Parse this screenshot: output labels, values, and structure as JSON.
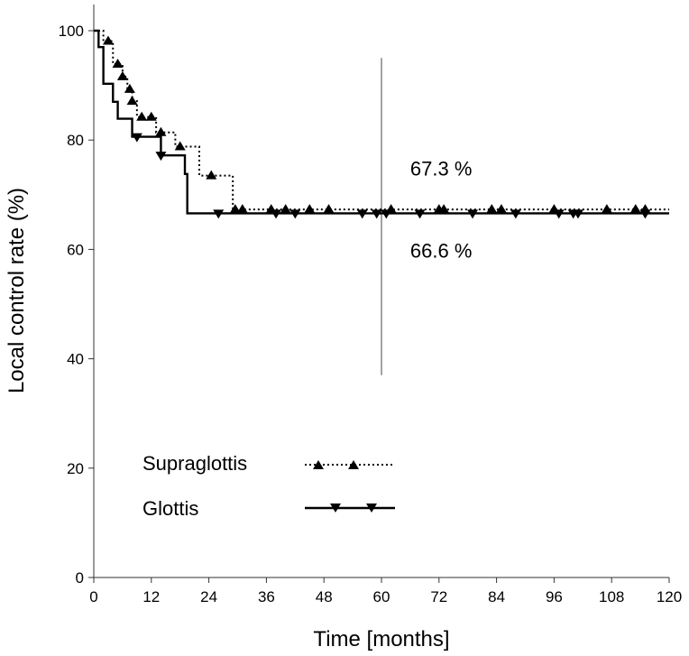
{
  "chart_data": {
    "type": "line",
    "subtype": "kaplan-meier",
    "title": "",
    "xlabel": "Time [months]",
    "ylabel": "Local control rate (%)",
    "xlim": [
      0,
      120
    ],
    "ylim": [
      0,
      100
    ],
    "xticks": [
      0,
      12,
      24,
      36,
      48,
      60,
      72,
      84,
      96,
      108,
      120
    ],
    "yticks": [
      0,
      20,
      40,
      60,
      80,
      100
    ],
    "grid": false,
    "legend_position": "bottom-left",
    "reference_line": {
      "x": 60,
      "y_from": 37,
      "y_to": 95
    },
    "annotations": [
      {
        "text": "67.3 %",
        "x": 66,
        "y": 73.5
      },
      {
        "text": "66.6 %",
        "x": 66,
        "y": 58.5
      }
    ],
    "series": [
      {
        "name": "Supraglottis",
        "style": "dotted",
        "marker": "triangle-up",
        "steps": [
          [
            0,
            100
          ],
          [
            2,
            98.1
          ],
          [
            4,
            93.9
          ],
          [
            6,
            91.6
          ],
          [
            7,
            89.3
          ],
          [
            8,
            87.1
          ],
          [
            9,
            84.2
          ],
          [
            13,
            81.4
          ],
          [
            17,
            78.8
          ],
          [
            22,
            73.5
          ],
          [
            25,
            73.5
          ],
          [
            29,
            67.3
          ],
          [
            120,
            67.3
          ]
        ],
        "censor": [
          3,
          5,
          6,
          7.5,
          8,
          10,
          12,
          14,
          18,
          24.5,
          29.5,
          31,
          37,
          40,
          45,
          49,
          62,
          72,
          73,
          83,
          85,
          96,
          107,
          113,
          115
        ]
      },
      {
        "name": "Glottis",
        "style": "solid",
        "marker": "triangle-down",
        "steps": [
          [
            0,
            100
          ],
          [
            1,
            97
          ],
          [
            2,
            90.3
          ],
          [
            4,
            87
          ],
          [
            5,
            83.9
          ],
          [
            8,
            80.6
          ],
          [
            14,
            77.2
          ],
          [
            19,
            73.8
          ],
          [
            19.5,
            66.6
          ],
          [
            120,
            66.6
          ]
        ],
        "censor": [
          9,
          14,
          26,
          38,
          42,
          56,
          59,
          61,
          68,
          79,
          88,
          97,
          100,
          101,
          115
        ]
      }
    ]
  }
}
